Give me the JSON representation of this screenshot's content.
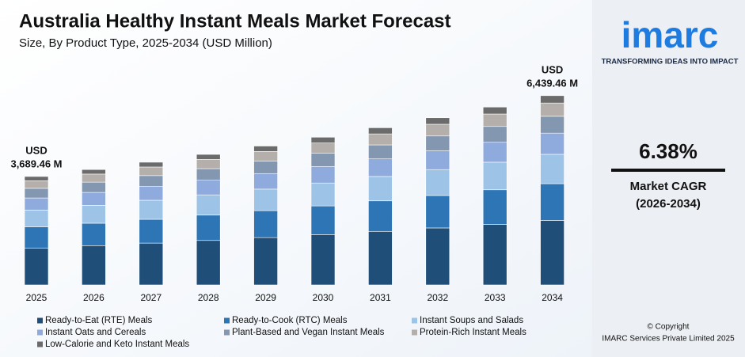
{
  "chart_data": {
    "type": "stacked-bar",
    "title": "Australia Healthy Instant Meals Market Forecast",
    "subtitle": "Size, By Product Type, 2025-2034 (USD Million)",
    "categories": [
      "2025",
      "2026",
      "2027",
      "2028",
      "2029",
      "2030",
      "2031",
      "2032",
      "2033",
      "2034"
    ],
    "series": [
      {
        "name": "Ready-to-Eat (RTE) Meals",
        "color": "#1f4e79",
        "values": [
          1258.1,
          1338.4,
          1423.7,
          1514.4,
          1611.2,
          1713.9,
          1823.3,
          1939.6,
          2063.4,
          2195.9
        ]
      },
      {
        "name": "Ready-to-Cook (RTC) Meals",
        "color": "#2e75b6",
        "values": [
          715.8,
          761.5,
          810.0,
          861.6,
          916.7,
          975.0,
          1037.3,
          1103.5,
          1173.9,
          1249.3
        ]
      },
      {
        "name": "Instant Soups and Salads",
        "color": "#9dc3e6",
        "values": [
          571.9,
          608.4,
          647.1,
          688.4,
          732.4,
          779.0,
          828.8,
          881.6,
          937.9,
          998.1
        ]
      },
      {
        "name": "Instant Oats and Cereals",
        "color": "#8faadc",
        "values": [
          413.2,
          439.6,
          467.6,
          497.4,
          529.2,
          562.9,
          598.9,
          637.1,
          677.7,
          721.2
        ]
      },
      {
        "name": "Plant-Based and Vegan Instant Meals",
        "color": "#8497b0",
        "values": [
          328.4,
          349.3,
          371.6,
          395.2,
          420.5,
          447.3,
          475.9,
          506.2,
          538.5,
          573.1
        ]
      },
      {
        "name": "Protein-Rich Instant Meals",
        "color": "#b4afaa",
        "values": [
          258.3,
          274.8,
          292.3,
          310.9,
          330.8,
          351.8,
          374.3,
          398.2,
          423.6,
          450.8
        ]
      },
      {
        "name": "Low-Calorie and Keto Instant Meals",
        "color": "#6b6b6b",
        "values": [
          143.9,
          153.1,
          162.8,
          173.2,
          184.3,
          196.0,
          208.5,
          221.8,
          236.0,
          251.1
        ]
      }
    ],
    "totals": {
      "prefix": "USD",
      "values": [
        3689.46,
        6439.46
      ],
      "value_labels": [
        "3,689.46 M",
        "6,439.46 M"
      ]
    },
    "ylim": [
      0,
      7000
    ]
  },
  "brand": {
    "logo": "imarc",
    "tagline": "TRANSFORMING IDEAS INTO IMPACT"
  },
  "cagr": {
    "value": "6.38%",
    "label": "Market CAGR",
    "period": "(2026-2034)"
  },
  "copyright": [
    "© Copyright",
    "IMARC Services Private Limited 2025"
  ]
}
